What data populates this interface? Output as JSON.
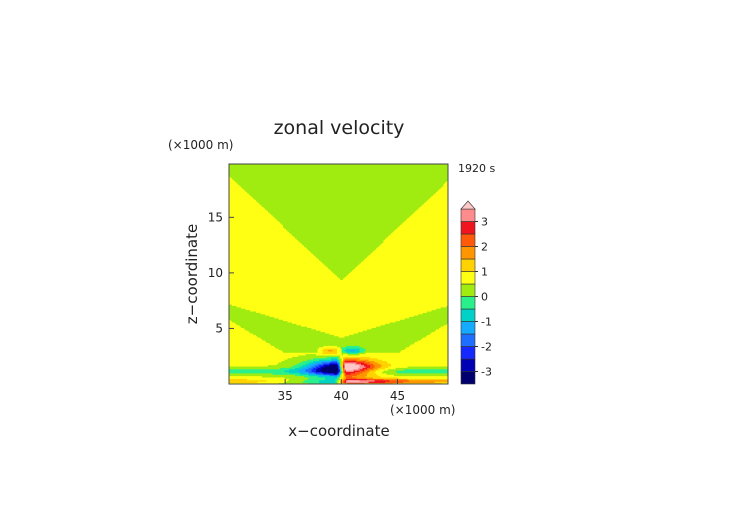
{
  "chart_data": {
    "type": "heatmap",
    "title": "zonal velocity",
    "xlabel": "x−coordinate",
    "ylabel": "z−coordinate",
    "x_unit": "(×1000 m)",
    "y_unit": "(×1000 m)",
    "time_label": "1920 s",
    "xlim": [
      30,
      49.5
    ],
    "ylim": [
      0,
      19.8
    ],
    "x_ticks": [
      35,
      40,
      45
    ],
    "y_ticks": [
      5,
      10,
      15
    ],
    "colorbar": {
      "ticks": [
        3,
        2,
        1,
        0,
        -1,
        -2,
        -3
      ],
      "levels": [
        {
          "lo": -3.5,
          "hi": -3.0,
          "color": "#00006e"
        },
        {
          "lo": -3.0,
          "hi": -2.5,
          "color": "#0000b4"
        },
        {
          "lo": -2.5,
          "hi": -2.0,
          "color": "#1428ff"
        },
        {
          "lo": -2.0,
          "hi": -1.5,
          "color": "#1e6eff"
        },
        {
          "lo": -1.5,
          "hi": -1.0,
          "color": "#14aaff"
        },
        {
          "lo": -1.0,
          "hi": -0.5,
          "color": "#00d2c8"
        },
        {
          "lo": -0.5,
          "hi": 0.0,
          "color": "#2af08c"
        },
        {
          "lo": 0.0,
          "hi": 0.5,
          "color": "#a0ec10"
        },
        {
          "lo": 0.5,
          "hi": 1.0,
          "color": "#ffff14"
        },
        {
          "lo": 1.0,
          "hi": 1.5,
          "color": "#ffd200"
        },
        {
          "lo": 1.5,
          "hi": 2.0,
          "color": "#ff9600"
        },
        {
          "lo": 2.0,
          "hi": 2.5,
          "color": "#ff5a0a"
        },
        {
          "lo": 2.5,
          "hi": 3.0,
          "color": "#f0141e"
        },
        {
          "lo": 3.0,
          "hi": 3.5,
          "color": "#ff8c8c"
        },
        {
          "lo": 3.5,
          "hi": 4.0,
          "color": "#ffc8c8"
        }
      ]
    }
  }
}
